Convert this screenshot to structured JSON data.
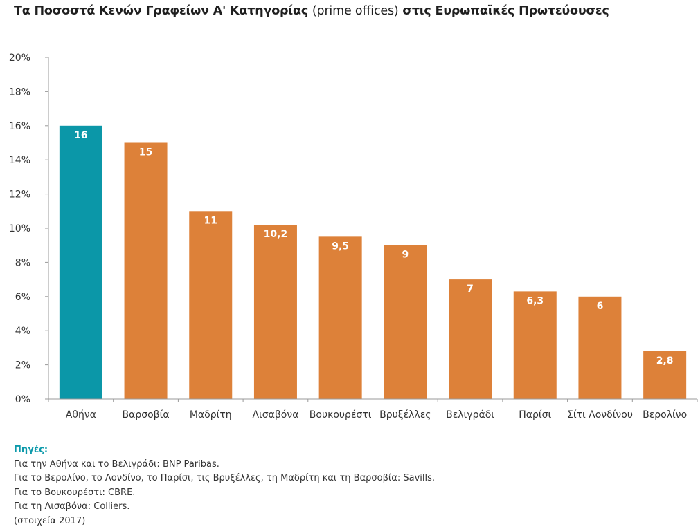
{
  "title": {
    "part1": "Τα Ποσοστά Κενών Γραφείων Α' Κατηγορίας",
    "part2": "(prime offices)",
    "part3": "στις Ευρωπαϊκές Πρωτεύουσες"
  },
  "colors": {
    "highlight": "#0b97a8",
    "bar": "#dd8139",
    "axis": "#9a9a9a",
    "label": "#ffffff",
    "sources_heading": "#0d9aab"
  },
  "chart_data": {
    "type": "bar",
    "categories": [
      "Αθήνα",
      "Βαρσοβία",
      "Μαδρίτη",
      "Λισαβόνα",
      "Βουκουρέστι",
      "Βρυξέλλες",
      "Βελιγράδι",
      "Παρίσι",
      "Σίτι Λονδίνου",
      "Βερολίνο"
    ],
    "values": [
      16,
      15,
      11,
      10.2,
      9.5,
      9,
      7,
      6.3,
      6,
      2.8
    ],
    "value_labels": [
      "16",
      "15",
      "11",
      "10,2",
      "9,5",
      "9",
      "7",
      "6,3",
      "6",
      "2,8"
    ],
    "highlight_index": 0,
    "ylim": [
      0,
      20
    ],
    "yticks": [
      0,
      2,
      4,
      6,
      8,
      10,
      12,
      14,
      16,
      18,
      20
    ],
    "ytick_labels": [
      "0%",
      "2%",
      "4%",
      "6%",
      "8%",
      "10%",
      "12%",
      "14%",
      "16%",
      "18%",
      "20%"
    ],
    "grid": false,
    "legend": "none"
  },
  "sources": {
    "heading": "Πηγές:",
    "lines": [
      "Για την Αθήνα και το Βελιγράδι: BNP Paribas.",
      "Για το Βερολίνο, το Λονδίνο, το Παρίσι, τις Βρυξέλλες, τη Μαδρίτη και τη Βαρσοβία: Savills.",
      "Για το Βουκουρέστι: CBRE.",
      "Για τη Λισαβόνα: Colliers.",
      "(στοιχεία 2017)"
    ]
  }
}
